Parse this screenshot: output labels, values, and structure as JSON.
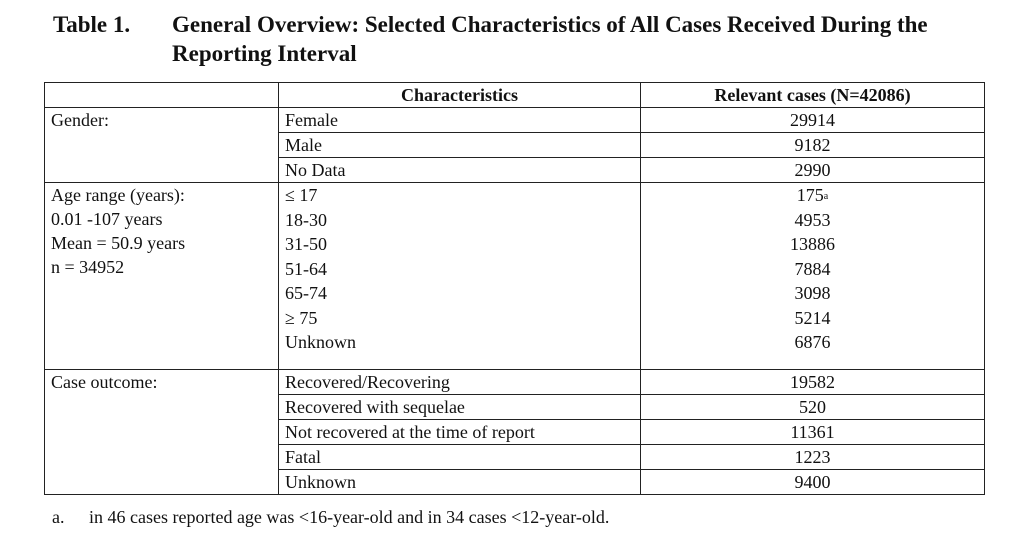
{
  "title": {
    "label": "Table 1.",
    "text": "General Overview: Selected Characteristics of All Cases Received During the Reporting Interval"
  },
  "table": {
    "headers": {
      "characteristics": "Characteristics",
      "relevant_cases": "Relevant cases (N=42086)"
    },
    "groups": [
      {
        "label_lines": [
          "Gender:"
        ],
        "rows": [
          {
            "characteristic": "Female",
            "value": "29914"
          },
          {
            "characteristic": "Male",
            "value": "9182"
          },
          {
            "characteristic": "No Data",
            "value": "2990"
          }
        ]
      },
      {
        "label_lines": [
          "Age range (years):",
          "0.01 -107 years",
          "Mean = 50.9 years",
          "n = 34952"
        ],
        "rows": [
          {
            "characteristic": "≤ 17",
            "value": "175",
            "mark": "a"
          },
          {
            "characteristic": "18-30",
            "value": "4953"
          },
          {
            "characteristic": "31-50",
            "value": "13886"
          },
          {
            "characteristic": "51-64",
            "value": "7884"
          },
          {
            "characteristic": "65-74",
            "value": "3098"
          },
          {
            "characteristic": "≥ 75",
            "value": "5214"
          },
          {
            "characteristic": "Unknown",
            "value": "6876"
          }
        ]
      },
      {
        "label_lines": [
          "Case outcome:"
        ],
        "rows": [
          {
            "characteristic": "Recovered/Recovering",
            "value": "19582"
          },
          {
            "characteristic": "Recovered with sequelae",
            "value": "520"
          },
          {
            "characteristic": "Not recovered at the time of report",
            "value": "11361"
          },
          {
            "characteristic": "Fatal",
            "value": "1223"
          },
          {
            "characteristic": "Unknown",
            "value": "9400"
          }
        ]
      }
    ]
  },
  "footnote": {
    "letter": "a.",
    "text": "in 46 cases reported age was <16-year-old and in 34 cases <12-year-old."
  }
}
